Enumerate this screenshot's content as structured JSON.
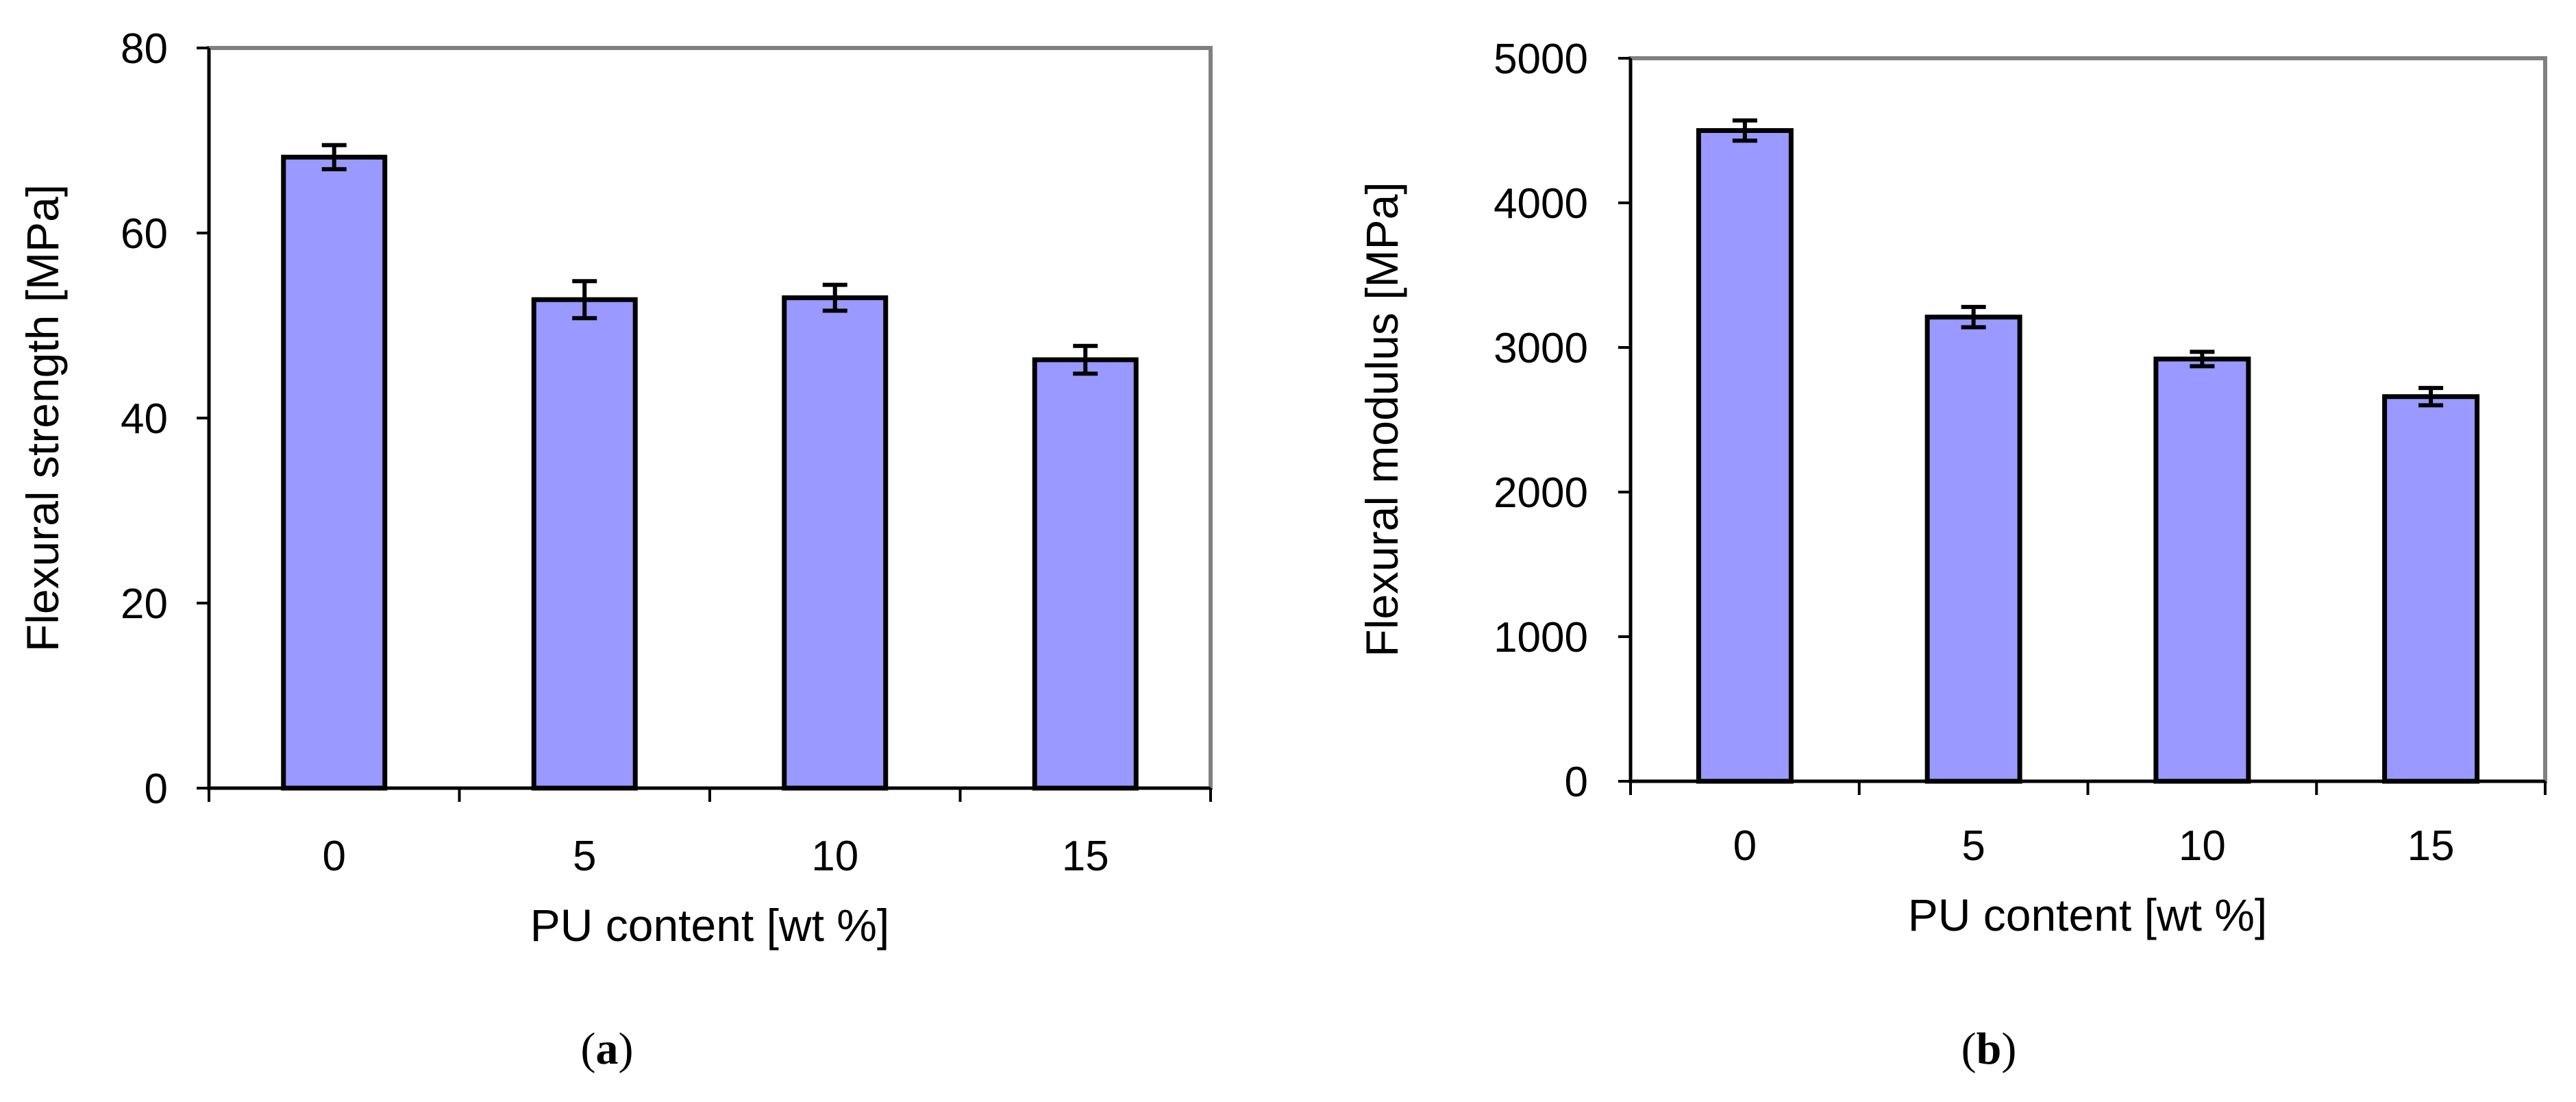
{
  "chart_data": [
    {
      "type": "bar",
      "panel_label": "a",
      "categories": [
        "0",
        "5",
        "10",
        "15"
      ],
      "values": [
        68.2,
        52.8,
        53.0,
        46.3
      ],
      "errors": [
        1.3,
        2.0,
        1.4,
        1.5
      ],
      "xlabel": "PU content [wt %]",
      "ylabel": "Flexural strength [MPa]",
      "ylim": [
        0,
        80
      ],
      "yticks": [
        0,
        20,
        40,
        60,
        80
      ],
      "bar_color": "#9999ff",
      "grid": false
    },
    {
      "type": "bar",
      "panel_label": "b",
      "categories": [
        "0",
        "5",
        "10",
        "15"
      ],
      "values": [
        4500,
        3210,
        2920,
        2660
      ],
      "errors": [
        70,
        70,
        50,
        60
      ],
      "xlabel": "PU content [wt %]",
      "ylabel": "Flexural modulus [MPa]",
      "ylim": [
        0,
        5000
      ],
      "yticks": [
        0,
        1000,
        2000,
        3000,
        4000,
        5000
      ],
      "bar_color": "#9999ff",
      "grid": false
    }
  ]
}
